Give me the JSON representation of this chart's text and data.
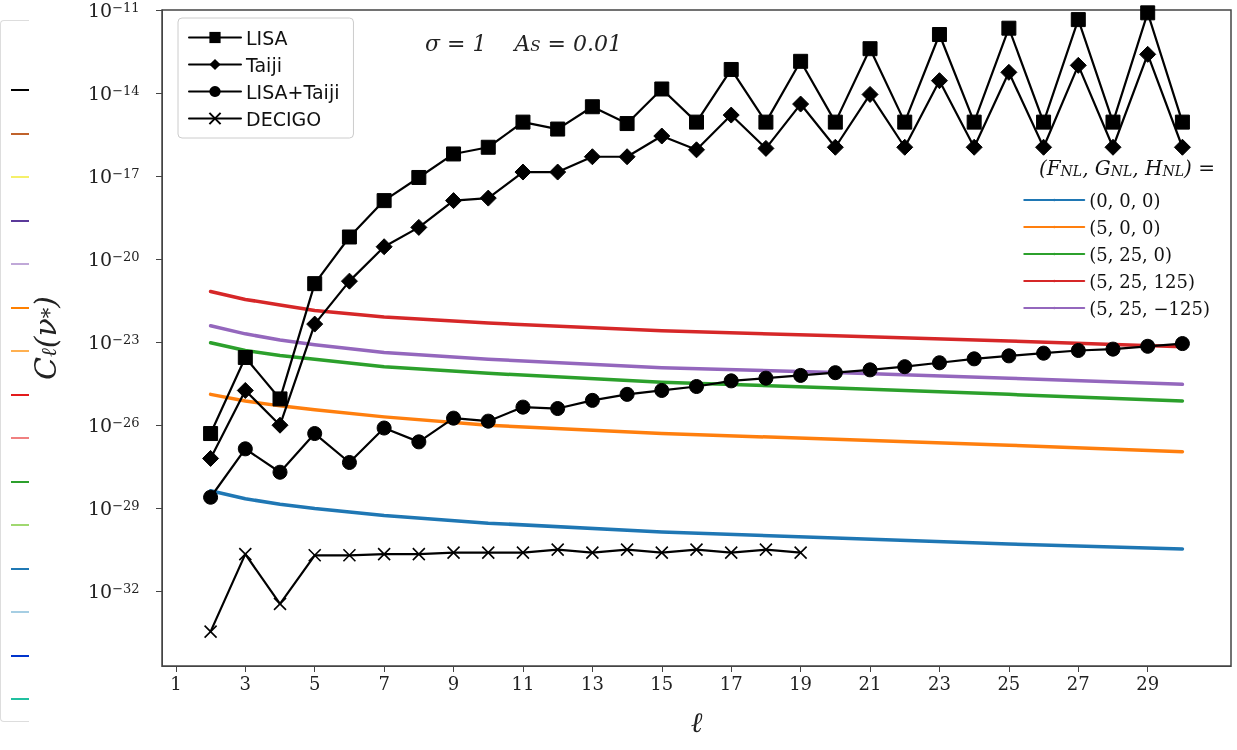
{
  "chart_data": {
    "type": "line",
    "xlabel": "ℓ",
    "ylabel": "C$_{ℓ}$(ν$_{*}$)",
    "legend": "top left",
    "legend_title": "(F$_{NL}$, G$_{NL}$, H$_{NL}$) =",
    "log": "y",
    "grid": false,
    "line_style": "solid",
    "annotations": [
      "σ = 1    A$_{S}$ = 0.01"
    ],
    "xlim": [
      0.6,
      31.4
    ],
    "xticks": [
      1,
      3,
      5,
      7,
      9,
      11,
      13,
      15,
      17,
      19,
      21,
      23,
      25,
      27,
      29
    ],
    "ylim": [
      2e-35,
      1e-11
    ],
    "yticks": [
      {
        "value": 1e-32,
        "label": "10$^{−32}$"
      },
      {
        "value": 1e-29,
        "label": "10$^{−29}$"
      },
      {
        "value": 1e-26,
        "label": "10$^{−26}$"
      },
      {
        "value": 1e-23,
        "label": "10$^{−23}$"
      },
      {
        "value": 1e-20,
        "label": "10$^{−20}$"
      },
      {
        "value": 1e-17,
        "label": "10$^{−17}$"
      },
      {
        "value": 1e-14,
        "label": "10$^{−14}$"
      },
      {
        "value": 1e-11,
        "label": "10$^{−11}$"
      }
    ],
    "series": [
      {
        "name": "(0, 0, 0)",
        "color": "#1f77b4",
        "marker": "none",
        "x": [
          2,
          3,
          4,
          5,
          7,
          10,
          15,
          20,
          25,
          30
        ],
        "values": [
          4.3e-29,
          2.2e-29,
          1.4e-29,
          9.8e-30,
          5.5e-30,
          2.9e-30,
          1.4e-30,
          8.4e-31,
          5.1e-31,
          3.4e-31
        ]
      },
      {
        "name": "(5, 0, 0)",
        "color": "#ff7f0e",
        "marker": "none",
        "x": [
          2,
          3,
          4,
          5,
          7,
          10,
          15,
          20,
          25,
          30
        ],
        "values": [
          1.3e-25,
          7.5e-26,
          5e-26,
          3.6e-26,
          2e-26,
          1e-26,
          5e-27,
          3.1e-27,
          1.9e-27,
          1.1e-27
        ]
      },
      {
        "name": "(5, 25, 0)",
        "color": "#2ca02c",
        "marker": "none",
        "x": [
          2,
          3,
          4,
          5,
          7,
          10,
          15,
          20,
          25,
          30
        ],
        "values": [
          9.5e-24,
          5e-24,
          3.3e-24,
          2.4e-24,
          1.3e-24,
          7.5e-25,
          3.6e-25,
          2.2e-25,
          1.3e-25,
          7.5e-26
        ]
      },
      {
        "name": "(5, 25, 125)",
        "color": "#d62728",
        "marker": "none",
        "x": [
          2,
          3,
          4,
          5,
          7,
          10,
          15,
          20,
          25,
          30
        ],
        "values": [
          6.8e-22,
          3.5e-22,
          2.2e-22,
          1.4e-22,
          8.1e-23,
          4.9e-23,
          2.6e-23,
          1.7e-23,
          1.1e-23,
          6.9e-24
        ]
      },
      {
        "name": "(5, 25, −125)",
        "color": "#9467bd",
        "marker": "none",
        "x": [
          2,
          3,
          4,
          5,
          7,
          10,
          15,
          20,
          25,
          30
        ],
        "values": [
          3.9e-23,
          2e-23,
          1.2e-23,
          8.1e-24,
          4.2e-24,
          2.4e-24,
          1.2e-24,
          8.1e-25,
          5e-25,
          3e-25
        ]
      },
      {
        "name": "LISA",
        "color": "#000000",
        "marker": "square",
        "x": [
          2,
          3,
          4,
          5,
          6,
          7,
          8,
          9,
          10,
          11,
          12,
          13,
          14,
          15,
          16,
          17,
          18,
          19,
          20,
          21,
          22,
          23,
          24,
          25,
          26,
          27,
          28,
          29,
          30
        ],
        "values": [
          5e-27,
          2.8e-24,
          8.9e-26,
          1.3e-21,
          6.3e-20,
          1.3e-18,
          8.9e-18,
          6.3e-17,
          1.1e-16,
          8.9e-16,
          5e-16,
          3.2e-15,
          7.9e-16,
          1.4e-14,
          8.9e-16,
          7.1e-14,
          8.9e-16,
          1.4e-13,
          8.9e-16,
          4e-13,
          8.9e-16,
          1.3e-12,
          8.9e-16,
          2.2e-12,
          8.9e-16,
          4.5e-12,
          8.9e-16,
          7.9e-12,
          8.9e-16
        ]
      },
      {
        "name": "Taiji",
        "color": "#000000",
        "marker": "diamond",
        "x": [
          2,
          3,
          4,
          5,
          6,
          7,
          8,
          9,
          10,
          11,
          12,
          13,
          14,
          15,
          16,
          17,
          18,
          19,
          20,
          21,
          22,
          23,
          24,
          25,
          26,
          27,
          28,
          29,
          30
        ],
        "values": [
          6.3e-28,
          1.8e-25,
          1e-26,
          4.5e-23,
          1.6e-21,
          2.8e-20,
          1.4e-19,
          1.3e-18,
          1.6e-18,
          1.4e-17,
          1.4e-17,
          5e-17,
          5e-17,
          2.8e-16,
          8.9e-17,
          1.6e-15,
          1e-16,
          4e-15,
          1.1e-16,
          8.9e-15,
          1.1e-16,
          2.8e-14,
          1.1e-16,
          5.6e-14,
          1.1e-16,
          1e-13,
          1.1e-16,
          2.5e-13,
          1.1e-16
        ]
      },
      {
        "name": "LISA+Taiji",
        "color": "#000000",
        "marker": "circle",
        "x": [
          2,
          3,
          4,
          5,
          6,
          7,
          8,
          9,
          10,
          11,
          12,
          13,
          14,
          15,
          16,
          17,
          18,
          19,
          20,
          21,
          22,
          23,
          24,
          25,
          26,
          27,
          28,
          29,
          30
        ],
        "values": [
          2.5e-29,
          1.4e-27,
          2e-28,
          5e-27,
          4.5e-28,
          7.9e-27,
          2.5e-27,
          1.8e-26,
          1.4e-26,
          4.5e-26,
          4e-26,
          7.9e-26,
          1.3e-25,
          1.8e-25,
          2.5e-25,
          4e-25,
          5e-25,
          6.3e-25,
          7.9e-25,
          1e-24,
          1.3e-24,
          1.8e-24,
          2.5e-24,
          3.2e-24,
          4e-24,
          5e-24,
          5.6e-24,
          7.1e-24,
          8.9e-24
        ]
      },
      {
        "name": "DECIGO",
        "color": "#000000",
        "marker": "cross",
        "x": [
          2,
          3,
          4,
          5,
          6,
          7,
          8,
          9,
          10,
          11,
          12,
          13,
          14,
          15,
          16,
          17,
          18,
          19
        ],
        "values": [
          3.5e-34,
          2.2e-31,
          3.5e-33,
          2e-31,
          2e-31,
          2.2e-31,
          2.2e-31,
          2.5e-31,
          2.5e-31,
          2.5e-31,
          3.2e-31,
          2.5e-31,
          3.2e-31,
          2.5e-31,
          3.2e-31,
          2.5e-31,
          3.2e-31,
          2.5e-31
        ]
      }
    ]
  }
}
